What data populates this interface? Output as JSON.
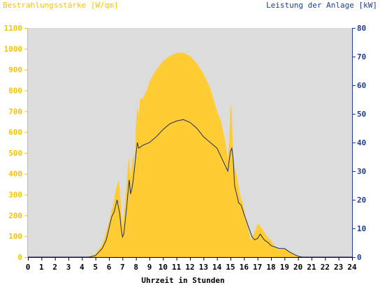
{
  "colors": {
    "background": "#ffffff",
    "plot_background": "#dcdcdc",
    "irradiance": "#ffcc33",
    "irradiance_label": "#f5c400",
    "power": "#1f2d5a",
    "right_axis": "#1f3d8a",
    "x_axis": "#000000"
  },
  "chart_data": {
    "type": "area",
    "title_left": "Bestrahlungsstärke [W/qm]",
    "title_right": "Leistung der Anlage [kW]",
    "xlabel": "Uhrzeit in Stunden",
    "xlim": [
      0,
      24
    ],
    "x_ticks": [
      "0",
      "1",
      "2",
      "3",
      "4",
      "5",
      "6",
      "7",
      "8",
      "9",
      "10",
      "11",
      "12",
      "13",
      "14",
      "15",
      "16",
      "17",
      "18",
      "19",
      "20",
      "21",
      "22",
      "23",
      "24"
    ],
    "y_left": {
      "lim": [
        0,
        1100
      ],
      "ticks": [
        "0",
        "100",
        "200",
        "300",
        "400",
        "500",
        "600",
        "700",
        "800",
        "900",
        "1000",
        "1100"
      ]
    },
    "y_right": {
      "lim": [
        0,
        80
      ],
      "ticks": [
        "0",
        "10",
        "20",
        "30",
        "40",
        "50",
        "60",
        "70",
        "80"
      ]
    },
    "series": [
      {
        "axis": "left",
        "kind": "area",
        "x": [
          0,
          4.5,
          5,
          5.5,
          5.8,
          6,
          6.3,
          6.5,
          6.7,
          6.8,
          6.9,
          7,
          7.1,
          7.25,
          7.4,
          7.5,
          7.6,
          7.7,
          7.8,
          7.9,
          8,
          8.1,
          8.2,
          8.3,
          8.5,
          8.8,
          9,
          9.5,
          10,
          10.5,
          11,
          11.5,
          12,
          12.5,
          13,
          13.5,
          14,
          14.3,
          14.6,
          14.8,
          14.9,
          15,
          15.1,
          15.2,
          15.3,
          15.5,
          15.7,
          15.9,
          16,
          16.2,
          16.5,
          16.7,
          16.9,
          17,
          17.2,
          17.5,
          17.8,
          18,
          18.3,
          18.6,
          19,
          19.3,
          19.6,
          20,
          20.3,
          21,
          24
        ],
        "values": [
          0,
          0,
          15,
          60,
          120,
          170,
          250,
          320,
          370,
          330,
          230,
          150,
          200,
          300,
          440,
          480,
          380,
          450,
          500,
          420,
          640,
          720,
          680,
          760,
          760,
          800,
          840,
          900,
          940,
          965,
          980,
          982,
          965,
          930,
          880,
          810,
          700,
          650,
          560,
          470,
          550,
          740,
          680,
          470,
          440,
          380,
          300,
          260,
          230,
          170,
          80,
          110,
          140,
          160,
          150,
          120,
          90,
          80,
          50,
          35,
          40,
          30,
          15,
          5,
          0,
          0,
          0
        ]
      },
      {
        "axis": "right",
        "kind": "line",
        "x": [
          0,
          4.5,
          5,
          5.5,
          5.8,
          6,
          6.2,
          6.4,
          6.6,
          6.8,
          6.9,
          7,
          7.1,
          7.3,
          7.5,
          7.6,
          7.7,
          7.8,
          8,
          8.1,
          8.2,
          8.5,
          9,
          9.5,
          10,
          10.5,
          11,
          11.5,
          12,
          12.5,
          13,
          13.5,
          14,
          14.5,
          14.8,
          15,
          15.1,
          15.2,
          15.3,
          15.4,
          15.6,
          15.8,
          16,
          16.3,
          16.6,
          16.8,
          17,
          17.2,
          17.5,
          17.8,
          18,
          18.3,
          18.6,
          19,
          19.3,
          19.6,
          20,
          20.3,
          21,
          24
        ],
        "values": [
          0,
          0,
          0.5,
          3,
          6,
          10,
          14,
          16,
          20,
          15,
          10,
          7,
          8,
          17,
          27,
          22,
          24,
          27,
          36,
          40,
          38,
          39,
          40,
          42,
          44.5,
          46.5,
          47.5,
          48,
          47,
          45,
          42,
          40,
          38,
          33,
          30,
          37,
          38,
          34,
          25,
          23,
          19,
          18,
          15,
          11,
          7,
          6,
          6.5,
          8,
          6,
          5,
          4,
          3.5,
          3,
          3,
          2,
          1.2,
          0.3,
          0,
          0,
          0
        ]
      }
    ]
  }
}
